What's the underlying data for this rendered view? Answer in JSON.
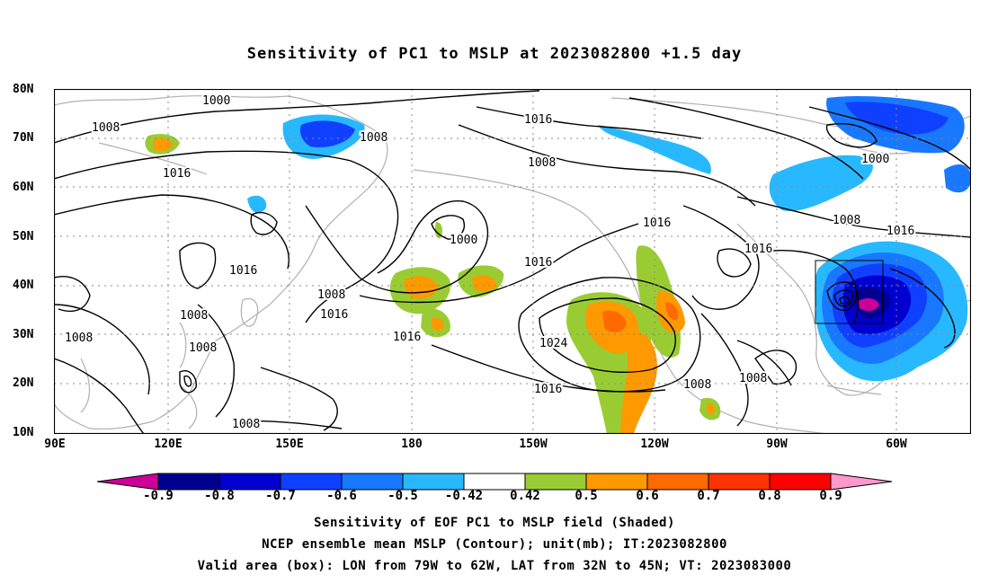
{
  "title": "Sensitivity of PC1 to MSLP at 2023082800 +1.5 day",
  "lat_labels": [
    "80N",
    "70N",
    "60N",
    "50N",
    "40N",
    "30N",
    "20N",
    "10N"
  ],
  "lon_labels": [
    "90E",
    "120E",
    "150E",
    "180",
    "150W",
    "120W",
    "90W",
    "60W"
  ],
  "contour_labels": [
    "1000",
    "1008",
    "1016",
    "1008",
    "1016",
    "1016",
    "1008",
    "1000",
    "1016",
    "1008",
    "1008",
    "1016",
    "1008",
    "1016",
    "1024",
    "1016",
    "1008",
    "1008",
    "1008",
    "1016",
    "1000",
    "1008",
    "1016",
    "1016",
    "1008"
  ],
  "colorbar": {
    "ticks": [
      "-0.9",
      "-0.8",
      "-0.7",
      "-0.6",
      "-0.5",
      "-0.42",
      "0.42",
      "0.5",
      "0.6",
      "0.7",
      "0.8",
      "0.9"
    ],
    "colors": [
      "#000090",
      "#0000d0",
      "#1040ff",
      "#1878ff",
      "#28b8ff",
      "#ffffff",
      "#99cc33",
      "#ff9900",
      "#ff6a00",
      "#ff3300",
      "#ff0000"
    ],
    "low_end_color": "#cc0099",
    "high_end_color": "#ff99cc"
  },
  "captions": [
    "Sensitivity of EOF PC1 to MSLP field (Shaded)",
    "NCEP ensemble mean MSLP (Contour); unit(mb); IT:2023082800",
    "Valid area (box): LON from 79W to 62W, LAT from 32N to 45N; VT: 2023083000"
  ]
}
